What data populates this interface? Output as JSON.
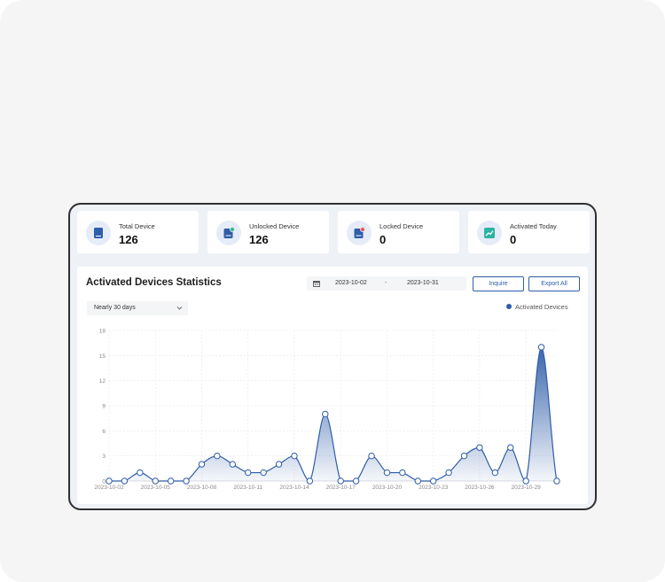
{
  "stats": [
    {
      "label": "Total Device",
      "value": "126",
      "icon": "tablet-icon"
    },
    {
      "label": "Unlocked Device",
      "value": "126",
      "icon": "unlocked-device-icon"
    },
    {
      "label": "Locked Device",
      "value": "0",
      "icon": "locked-device-icon"
    },
    {
      "label": "Activated Today",
      "value": "0",
      "icon": "trend-icon"
    }
  ],
  "panel": {
    "title": "Activated Devices Statistics",
    "start_date": "2023-10-02",
    "separator": "-",
    "end_date": "2023-10-31",
    "inquire_label": "Inquire",
    "export_label": "Export All",
    "period_select": "Nearly 30 days",
    "legend_label": "Activated Devices"
  },
  "colors": {
    "accent": "#2f5da8",
    "page_bg": "#f4f5f4",
    "frame_border": "#2f2f2f"
  },
  "chart_data": {
    "type": "area",
    "smooth": true,
    "x": [
      "2023-10-02",
      "2023-10-03",
      "2023-10-04",
      "2023-10-05",
      "2023-10-06",
      "2023-10-07",
      "2023-10-08",
      "2023-10-09",
      "2023-10-10",
      "2023-10-11",
      "2023-10-12",
      "2023-10-13",
      "2023-10-14",
      "2023-10-15",
      "2023-10-16",
      "2023-10-17",
      "2023-10-18",
      "2023-10-19",
      "2023-10-20",
      "2023-10-21",
      "2023-10-22",
      "2023-10-23",
      "2023-10-24",
      "2023-10-25",
      "2023-10-26",
      "2023-10-27",
      "2023-10-28",
      "2023-10-29",
      "2023-10-30",
      "2023-10-31"
    ],
    "x_tick_labels": [
      "2023-10-02",
      "2023-10-05",
      "2023-10-08",
      "2023-10-11",
      "2023-10-14",
      "2023-10-17",
      "2023-10-20",
      "2023-10-23",
      "2023-10-26",
      "2023-10-29"
    ],
    "y_ticks": [
      0,
      3,
      6,
      9,
      12,
      15,
      18
    ],
    "ylim": [
      0,
      18
    ],
    "grid": true,
    "legend": "top-right",
    "series": [
      {
        "name": "Activated Devices",
        "values": [
          0,
          0,
          1,
          0,
          0,
          0,
          2,
          3,
          2,
          1,
          1,
          2,
          3,
          0,
          8,
          0,
          0,
          3,
          1,
          1,
          0,
          0,
          1,
          3,
          4,
          1,
          4,
          0,
          16,
          0
        ]
      }
    ]
  }
}
